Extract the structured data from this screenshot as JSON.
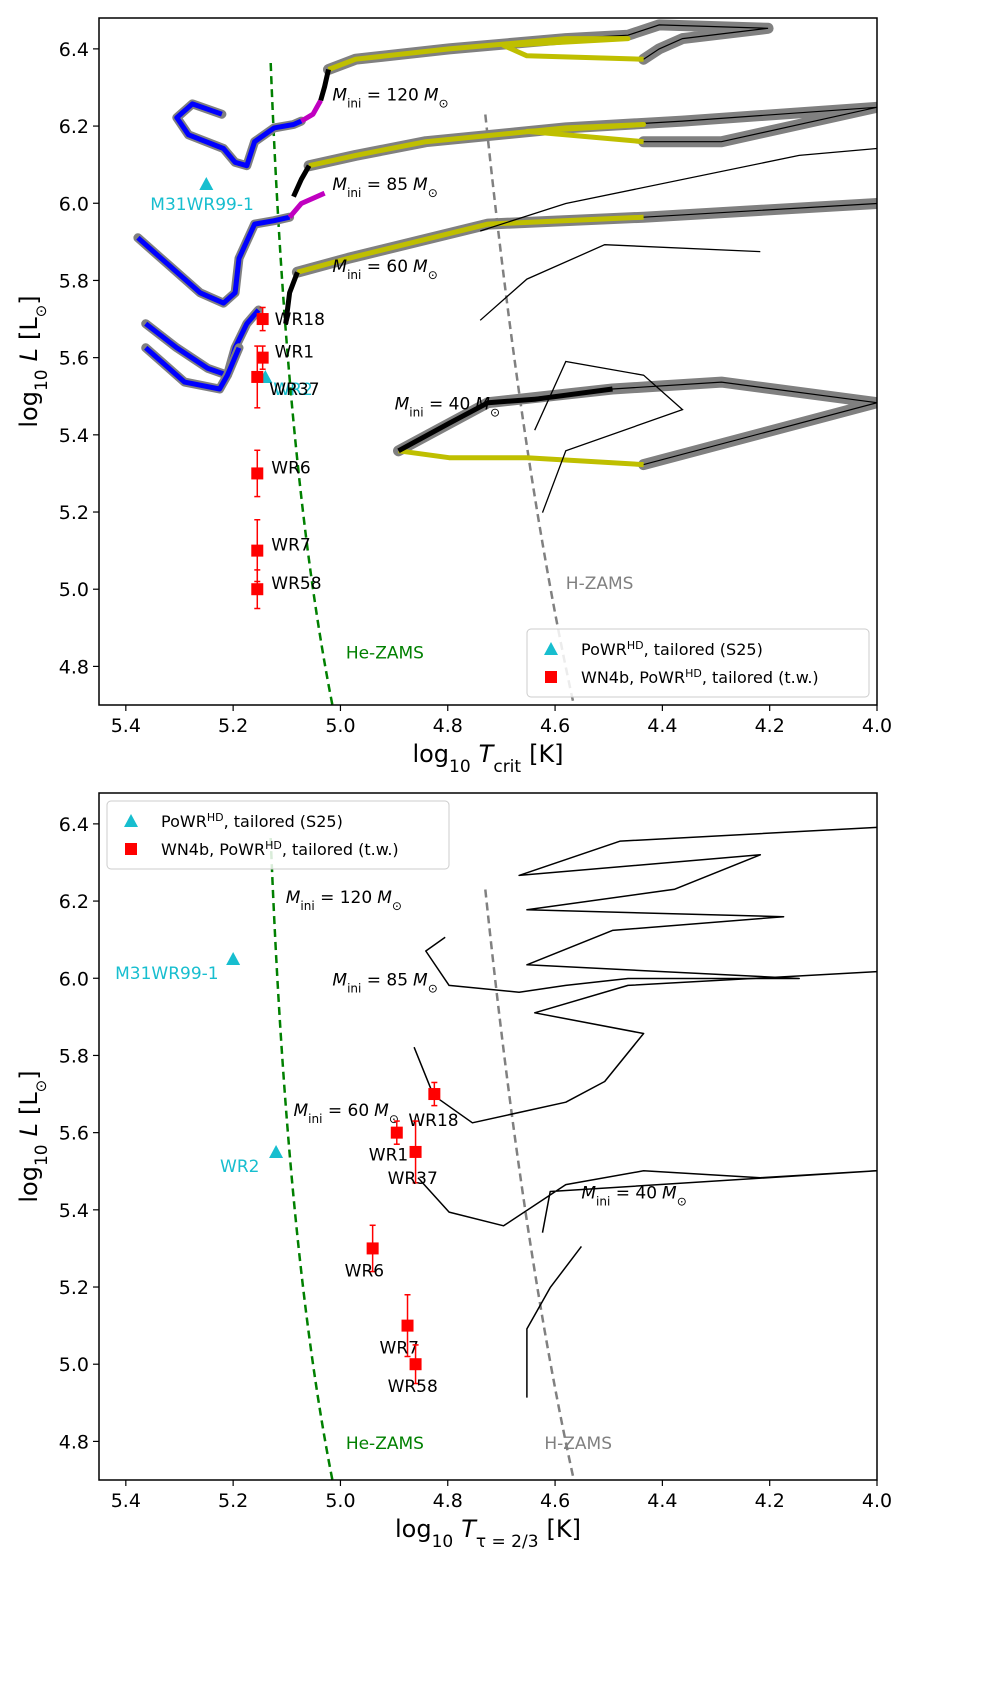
{
  "chart_data": [
    {
      "type": "scatter",
      "panel": "top",
      "xlabel_main": "log",
      "xlabel_sub10": "10",
      "xlabel_var": "T",
      "xlabel_varsub": "crit",
      "xlabel_unit": "[K]",
      "ylabel_main": "log",
      "ylabel_sub10": "10",
      "ylabel_var": "L",
      "ylabel_unit_open": "[L",
      "ylabel_unit_sub": "⊙",
      "ylabel_unit_close": "]",
      "xlim": [
        5.45,
        4.0
      ],
      "ylim": [
        4.7,
        6.48
      ],
      "xticks": [
        "5.4",
        "5.2",
        "5.0",
        "4.8",
        "4.6",
        "4.4",
        "4.2",
        "4.0"
      ],
      "yticks": [
        "4.8",
        "5.0",
        "5.2",
        "5.4",
        "5.6",
        "5.8",
        "6.0",
        "6.2",
        "6.4"
      ],
      "legend_position": "bottom-right",
      "legend": [
        {
          "marker": "triangle",
          "color": "#17becf",
          "pre": "PoWR",
          "sup": "HD",
          "post": ", tailored (S25)"
        },
        {
          "marker": "square",
          "color": "#ff0000",
          "pre": "WN4b, PoWR",
          "sup": "HD",
          "post": ", tailored (t.w.)"
        }
      ],
      "S25": [
        {
          "name": "M31WR99-1",
          "x": 5.25,
          "y": 6.05
        },
        {
          "name": "WR2",
          "x": 5.14,
          "y": 5.55
        }
      ],
      "WN4b": [
        {
          "name": "WR18",
          "x": 5.145,
          "y": 5.7,
          "yerr": 0.03
        },
        {
          "name": "WR1",
          "x": 5.145,
          "y": 5.6,
          "yerr": 0.03
        },
        {
          "name": "WR37",
          "x": 5.155,
          "y": 5.55,
          "yerr": 0.08
        },
        {
          "name": "WR6",
          "x": 5.155,
          "y": 5.3,
          "yerr": 0.06
        },
        {
          "name": "WR7",
          "x": 5.155,
          "y": 5.1,
          "yerr": 0.08
        },
        {
          "name": "WR58",
          "x": 5.155,
          "y": 5.0,
          "yerr": 0.05
        }
      ],
      "zams_labels": {
        "he": "He-ZAMS",
        "h": "H-ZAMS"
      },
      "track_labels": [
        {
          "mass": "120"
        },
        {
          "mass": "85"
        },
        {
          "mass": "60"
        },
        {
          "mass": "40"
        }
      ],
      "mass_label_parts": {
        "m": "M",
        "sub": "ini",
        "eq": " = ",
        "unit": "M",
        "sun": "⊙"
      }
    },
    {
      "type": "scatter",
      "panel": "bottom",
      "xlabel_main": "log",
      "xlabel_sub10": "10",
      "xlabel_var": "T",
      "xlabel_varsub": "τ = 2/3",
      "xlabel_unit": "[K]",
      "ylabel_main": "log",
      "ylabel_sub10": "10",
      "ylabel_var": "L",
      "ylabel_unit_open": "[L",
      "ylabel_unit_sub": "⊙",
      "ylabel_unit_close": "]",
      "xlim": [
        5.45,
        4.0
      ],
      "ylim": [
        4.7,
        6.48
      ],
      "xticks": [
        "5.4",
        "5.2",
        "5.0",
        "4.8",
        "4.6",
        "4.4",
        "4.2",
        "4.0"
      ],
      "yticks": [
        "4.8",
        "5.0",
        "5.2",
        "5.4",
        "5.6",
        "5.8",
        "6.0",
        "6.2",
        "6.4"
      ],
      "legend_position": "top-left",
      "legend": [
        {
          "marker": "triangle",
          "color": "#17becf",
          "pre": "PoWR",
          "sup": "HD",
          "post": ", tailored (S25)"
        },
        {
          "marker": "square",
          "color": "#ff0000",
          "pre": "WN4b, PoWR",
          "sup": "HD",
          "post": ", tailored (t.w.)"
        }
      ],
      "S25": [
        {
          "name": "M31WR99-1",
          "x": 5.2,
          "y": 6.05
        },
        {
          "name": "WR2",
          "x": 5.12,
          "y": 5.55
        }
      ],
      "WN4b": [
        {
          "name": "WR18",
          "x": 4.825,
          "y": 5.7,
          "yerr": 0.03
        },
        {
          "name": "WR1",
          "x": 4.895,
          "y": 5.6,
          "yerr": 0.03
        },
        {
          "name": "WR37",
          "x": 4.86,
          "y": 5.55,
          "yerr": 0.08
        },
        {
          "name": "WR6",
          "x": 4.94,
          "y": 5.3,
          "yerr": 0.06
        },
        {
          "name": "WR7",
          "x": 4.875,
          "y": 5.1,
          "yerr": 0.08
        },
        {
          "name": "WR58",
          "x": 4.86,
          "y": 5.0,
          "yerr": 0.05
        }
      ],
      "zams_labels": {
        "he": "He-ZAMS",
        "h": "H-ZAMS"
      },
      "track_labels": [
        {
          "mass": "120"
        },
        {
          "mass": "85"
        },
        {
          "mass": "60"
        },
        {
          "mass": "40"
        }
      ],
      "mass_label_parts": {
        "m": "M",
        "sub": "ini",
        "eq": " = ",
        "unit": "M",
        "sun": "⊙"
      }
    }
  ],
  "colors": {
    "s25": "#17becf",
    "wn4b": "#ff0000",
    "he_zams": "#008000",
    "h_zams": "#808080",
    "blue": "#0000ff",
    "magenta": "#c000c0",
    "olive": "#bfbf00",
    "halo": "#808080"
  }
}
